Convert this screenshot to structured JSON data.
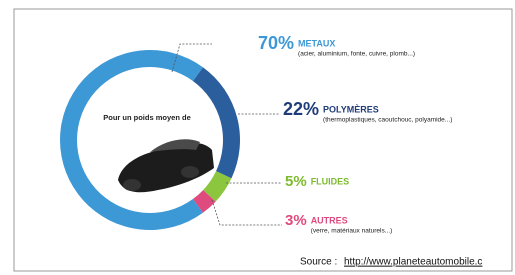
{
  "chart_data": {
    "type": "donut",
    "center_text": "Pour un poids moyen de",
    "categories": [
      "METAUX",
      "POLYMÈRES",
      "FLUIDES",
      "AUTRES"
    ],
    "descriptions": [
      "(acier, aluminium, fonte, cuivre, plomb...)",
      "(thermoplastiques, caoutchouc, polyamide...)",
      null,
      "(verre, matériaux naturels...)"
    ],
    "values": [
      70,
      22,
      5,
      3
    ],
    "value_labels": [
      "70%",
      "22%",
      "5%",
      "3%"
    ],
    "colors": [
      "#3d98d6",
      "#2b5e9c",
      "#8cc63f",
      "#df4b7e"
    ],
    "label_colors": [
      "#3d98d6",
      "#1f3c78",
      "#7dbb2e",
      "#df4b7e"
    ],
    "source_label": "Source :",
    "source_url": "http://www.planeteautomobile.c"
  }
}
